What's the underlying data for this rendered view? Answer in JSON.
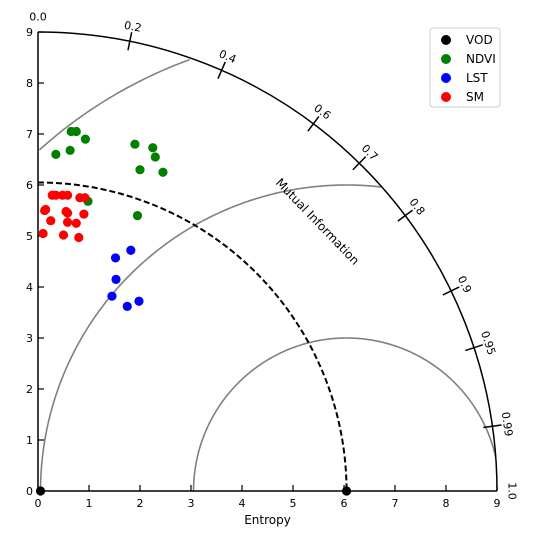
{
  "chart_data": {
    "type": "scatter",
    "subtype": "taylor-diagram",
    "xlabel": "Entropy",
    "arc_label": "Mutual Information",
    "radial_range": [
      0,
      9
    ],
    "x_ticks": [
      "0",
      "1",
      "2",
      "3",
      "4",
      "5",
      "6",
      "7",
      "8",
      "9"
    ],
    "y_ticks": [
      "0",
      "1",
      "2",
      "3",
      "4",
      "5",
      "6",
      "7",
      "8",
      "9"
    ],
    "arc_ticks": [
      {
        "value": 0.0,
        "label": "0.0"
      },
      {
        "value": 0.2,
        "label": "0.2"
      },
      {
        "value": 0.4,
        "label": "0.4"
      },
      {
        "value": 0.6,
        "label": "0.6"
      },
      {
        "value": 0.7,
        "label": "0.7"
      },
      {
        "value": 0.8,
        "label": "0.8"
      },
      {
        "value": 0.9,
        "label": "0.9"
      },
      {
        "value": 0.95,
        "label": "0.95"
      },
      {
        "value": 0.99,
        "label": "0.99"
      },
      {
        "value": 1.0,
        "label": "1.0"
      }
    ],
    "reference": {
      "value": 6.05,
      "color": "#000000"
    },
    "reference_arc_radius": 6.05,
    "rms_contours": [
      3.0,
      6.0,
      9.0
    ],
    "legend": {
      "position": "top-right"
    },
    "series": [
      {
        "name": "VOD",
        "color": "#000000",
        "points": [
          [
            0.05,
            0.0
          ],
          [
            6.05,
            0.0
          ]
        ]
      },
      {
        "name": "NDVI",
        "color": "#008000",
        "points": [
          [
            0.65,
            7.05
          ],
          [
            0.75,
            7.05
          ],
          [
            0.93,
            6.9
          ],
          [
            0.63,
            6.68
          ],
          [
            0.35,
            6.6
          ],
          [
            1.9,
            6.8
          ],
          [
            2.25,
            6.73
          ],
          [
            2.3,
            6.55
          ],
          [
            2.0,
            6.3
          ],
          [
            2.45,
            6.25
          ],
          [
            0.98,
            5.68
          ],
          [
            1.95,
            5.4
          ]
        ]
      },
      {
        "name": "LST",
        "color": "#0000ff",
        "points": [
          [
            1.82,
            4.72
          ],
          [
            1.52,
            4.57
          ],
          [
            1.53,
            4.15
          ],
          [
            1.45,
            3.82
          ],
          [
            1.98,
            3.72
          ],
          [
            1.75,
            3.62
          ]
        ]
      },
      {
        "name": "SM",
        "color": "#ff0000",
        "points": [
          [
            0.28,
            5.8
          ],
          [
            0.35,
            5.8
          ],
          [
            0.48,
            5.8
          ],
          [
            0.58,
            5.8
          ],
          [
            0.82,
            5.75
          ],
          [
            0.92,
            5.75
          ],
          [
            0.13,
            5.5
          ],
          [
            0.15,
            5.52
          ],
          [
            0.55,
            5.48
          ],
          [
            0.58,
            5.45
          ],
          [
            0.9,
            5.43
          ],
          [
            0.25,
            5.3
          ],
          [
            0.58,
            5.27
          ],
          [
            0.75,
            5.25
          ],
          [
            0.1,
            5.05
          ],
          [
            0.5,
            5.02
          ],
          [
            0.8,
            4.97
          ]
        ]
      }
    ]
  }
}
